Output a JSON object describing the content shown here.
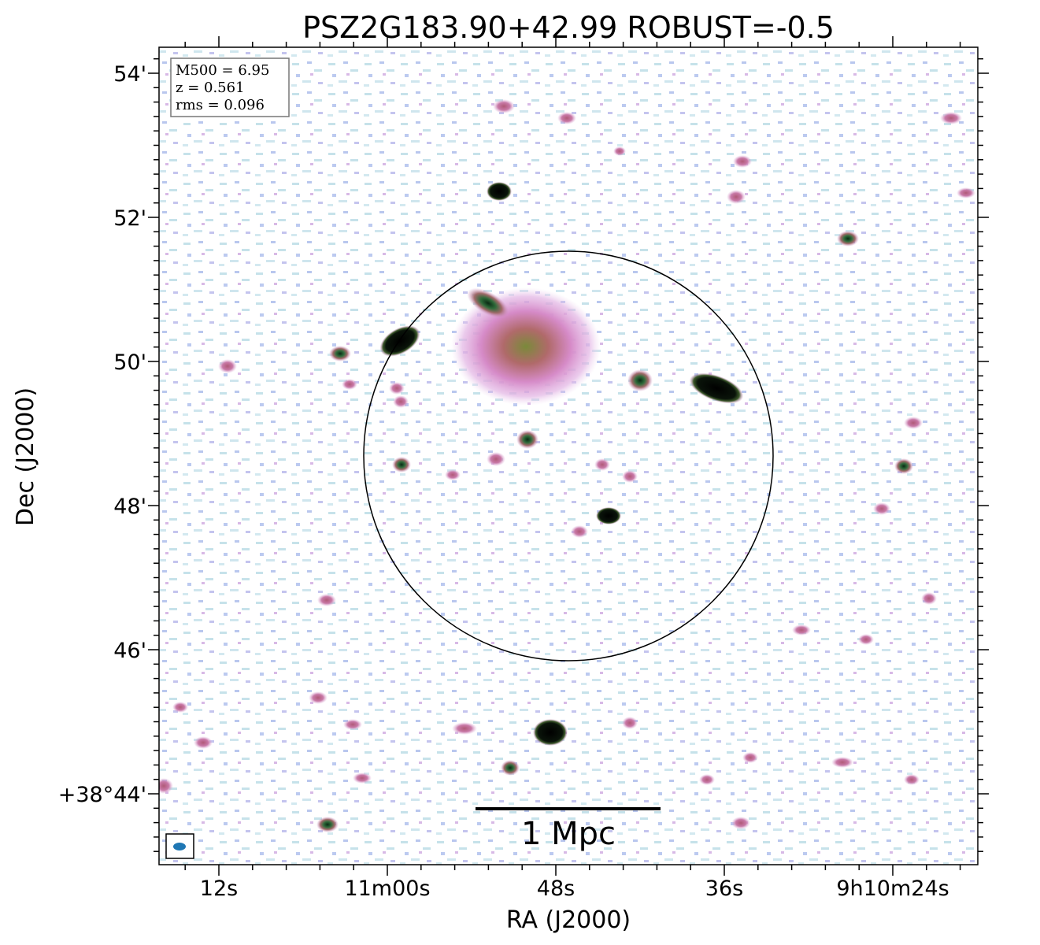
{
  "title": "PSZ2G183.90+42.99 ROBUST=-0.5",
  "xlabel": "RA (J2000)",
  "ylabel": "Dec (J2000)",
  "x_ticks": [
    "12s",
    "11m00s",
    "48s",
    "36s",
    "9h10m24s"
  ],
  "y_ticks": [
    "54'",
    "52'",
    "50'",
    "48'",
    "46'",
    "+38°44'"
  ],
  "info": {
    "m500": "M500 = 6.95",
    "z": "z = 0.561",
    "rms": "rms = 0.096"
  },
  "scalebar_label": "1 Mpc",
  "beam_color": "#1f77b4"
}
